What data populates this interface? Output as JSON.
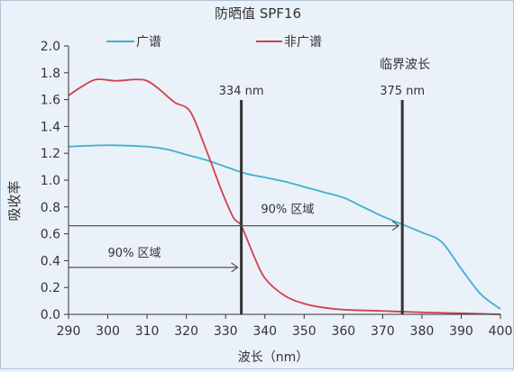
{
  "chart_data": {
    "type": "line",
    "title": "防晒值 SPF16",
    "xlabel": "波长（nm）",
    "ylabel": "吸收率",
    "xlim": [
      290,
      400
    ],
    "ylim": [
      0,
      2.0
    ],
    "x_ticks": [
      "290",
      "300",
      "310",
      "320",
      "330",
      "340",
      "350",
      "360",
      "370",
      "380",
      "390",
      "400"
    ],
    "y_ticks": [
      "0.0",
      "0.2",
      "0.4",
      "0.6",
      "0.8",
      "1.0",
      "1.2",
      "1.4",
      "1.6",
      "1.8",
      "2.0"
    ],
    "legend_position": "top-left",
    "grid": false,
    "series": [
      {
        "name": "广谱",
        "color": "#3fb0d0",
        "x": [
          290,
          300,
          310,
          315,
          320,
          325,
          330,
          335,
          340,
          345,
          350,
          355,
          360,
          365,
          370,
          375,
          380,
          385,
          390,
          395,
          400
        ],
        "y": [
          1.25,
          1.26,
          1.25,
          1.23,
          1.19,
          1.15,
          1.1,
          1.05,
          1.02,
          0.99,
          0.95,
          0.91,
          0.87,
          0.8,
          0.73,
          0.67,
          0.61,
          0.54,
          0.34,
          0.15,
          0.04
        ]
      },
      {
        "name": "非广谱",
        "color": "#d1404c",
        "x": [
          290,
          293,
          297,
          302,
          307,
          310,
          313,
          317,
          321,
          325,
          329,
          332,
          334,
          337,
          340,
          345,
          350,
          355,
          360,
          370,
          380,
          390,
          400
        ],
        "y": [
          1.63,
          1.69,
          1.75,
          1.74,
          1.75,
          1.74,
          1.68,
          1.58,
          1.51,
          1.23,
          0.92,
          0.72,
          0.66,
          0.45,
          0.27,
          0.14,
          0.08,
          0.05,
          0.035,
          0.025,
          0.015,
          0.008,
          0.0
        ]
      }
    ],
    "annotations": {
      "critical_label": "临界波长",
      "line_334_label": "334 nm",
      "line_375_label": "375 nm",
      "lines": [
        {
          "x": 334,
          "label": "334 nm"
        },
        {
          "x": 375,
          "label": "375 nm"
        }
      ],
      "arrows": [
        {
          "label": "90% 区域",
          "from_x": 290,
          "to_x": 375,
          "y": 0.66
        },
        {
          "label": "90% 区域",
          "from_x": 290,
          "to_x": 334,
          "y": 0.35
        }
      ]
    },
    "axis_color": "#333333",
    "arrow_color": "#555555"
  }
}
